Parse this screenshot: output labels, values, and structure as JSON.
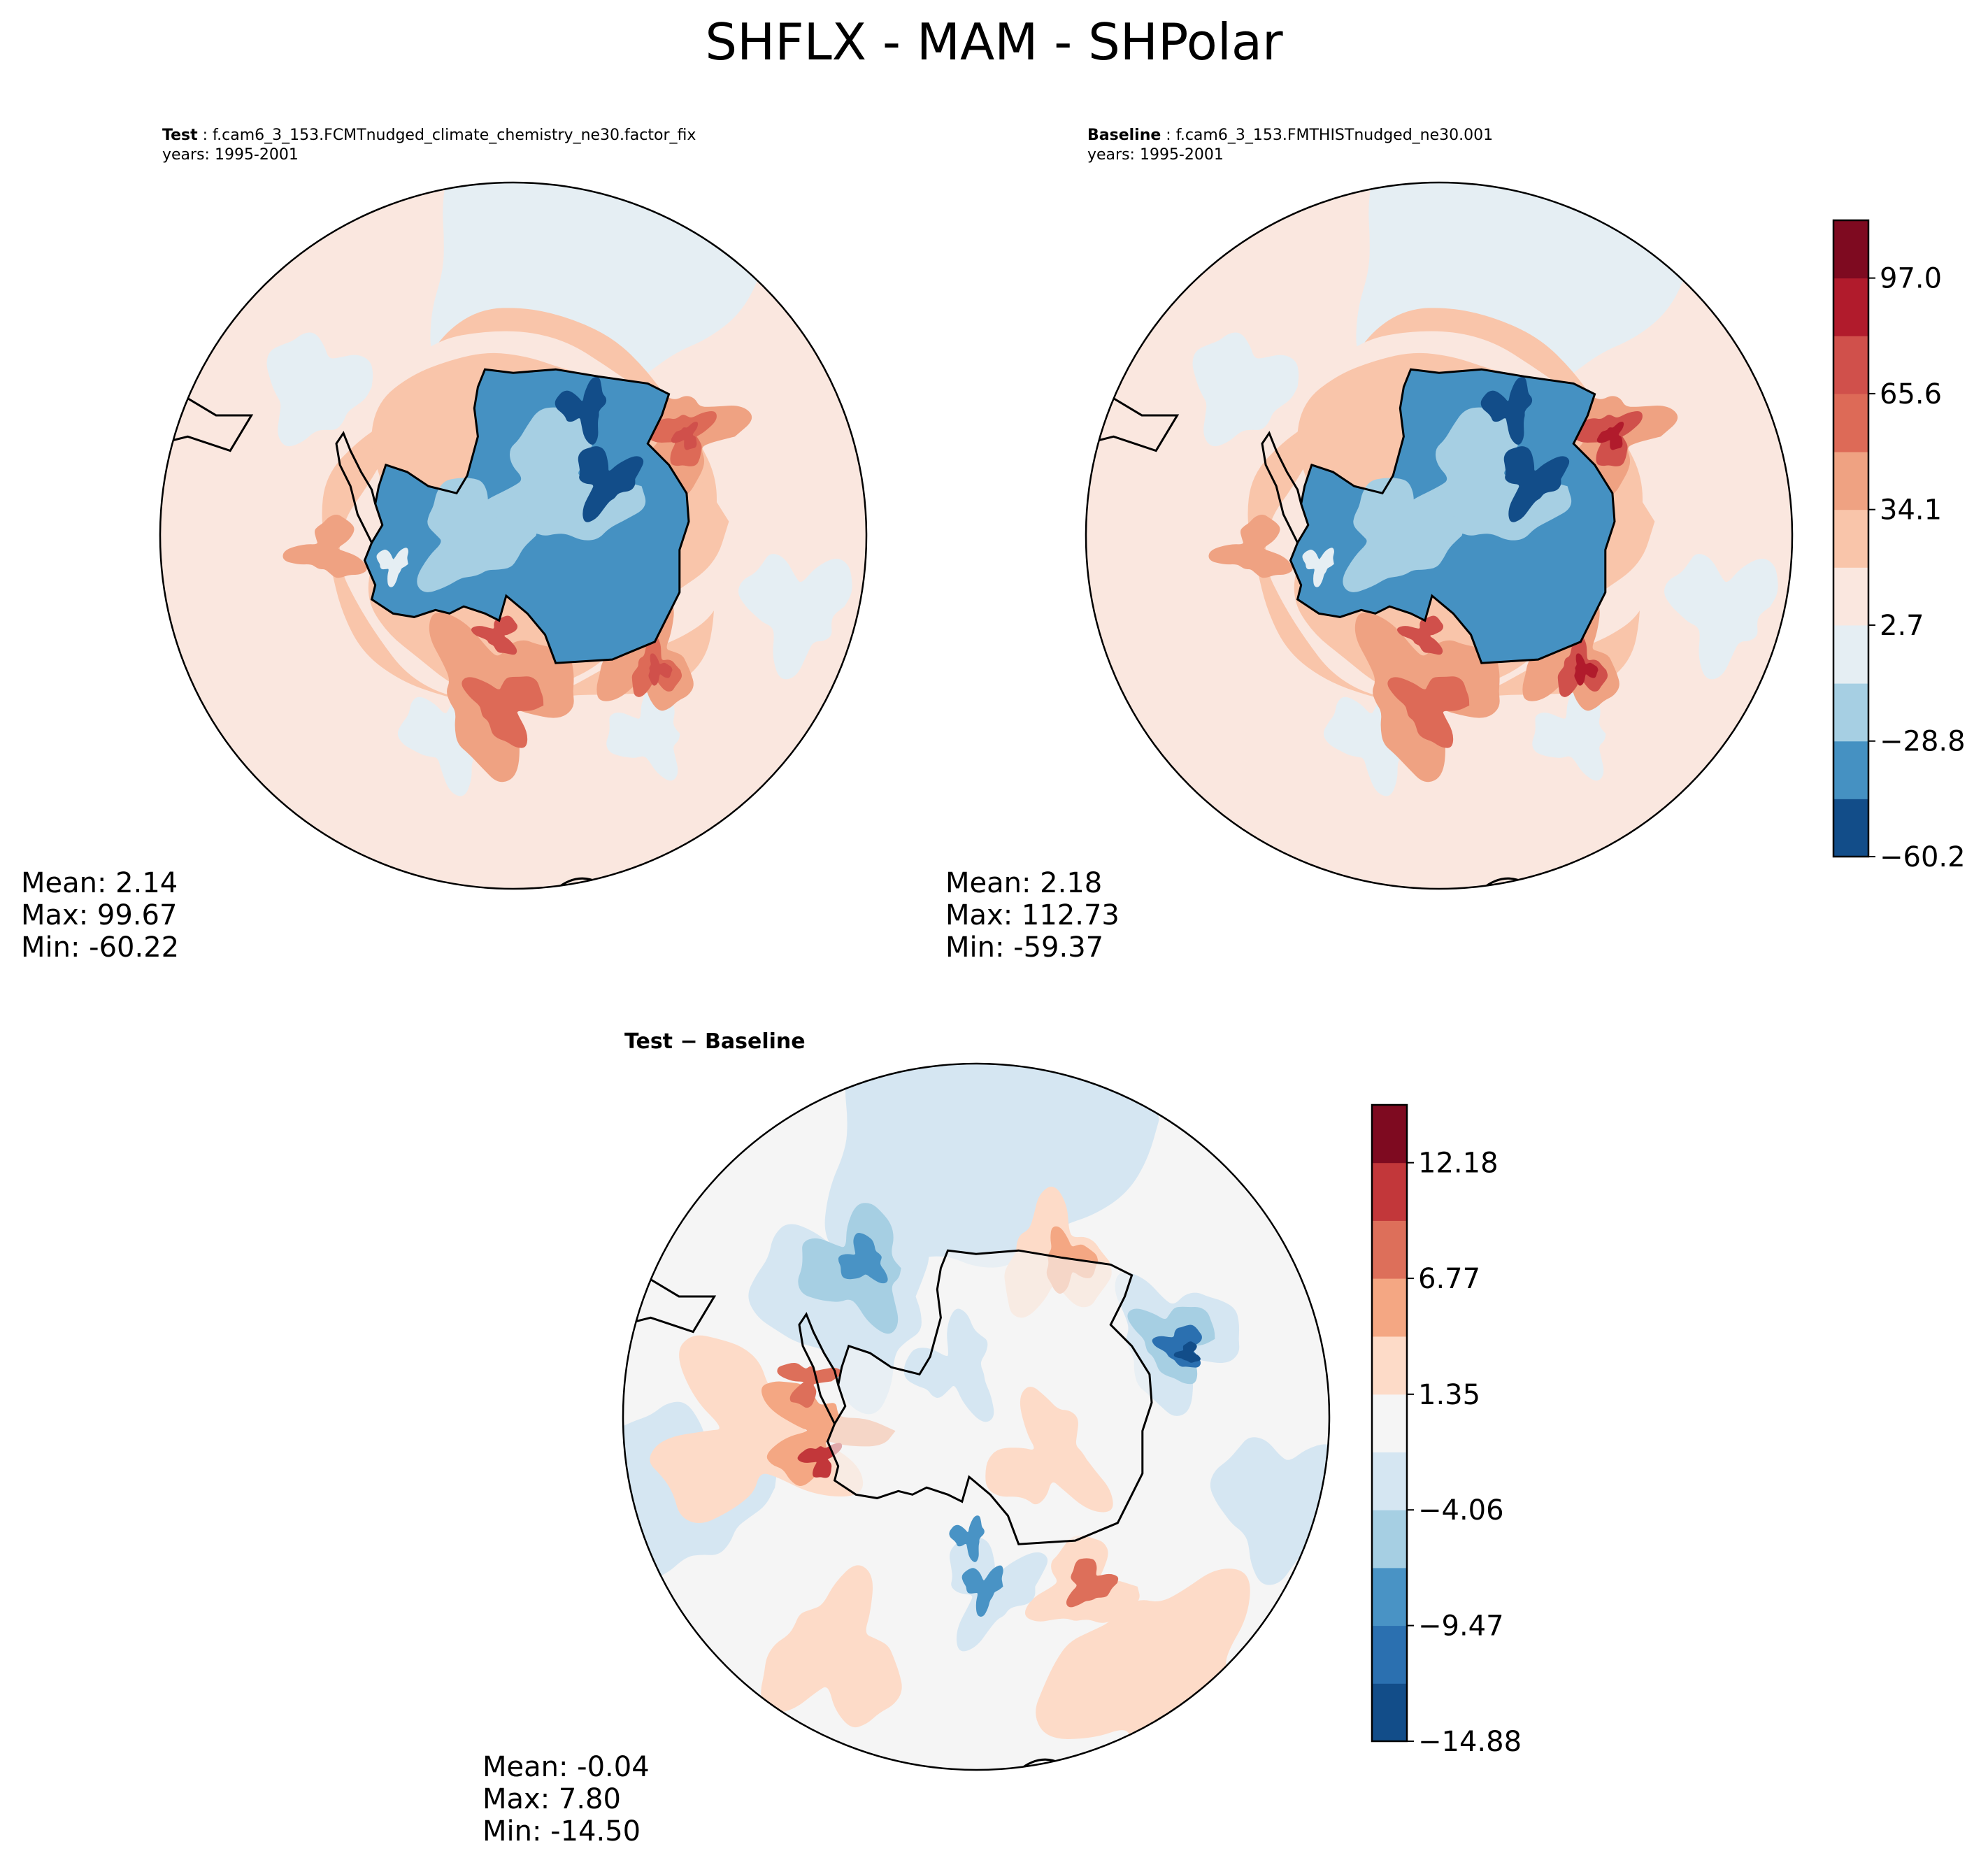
{
  "figure_title": "SHFLX - MAM - SHPolar",
  "colors": {
    "seq11": [
      "#124d89",
      "#4591c2",
      "#a6cfe3",
      "#e5eef3",
      "#fae7df",
      "#f9c5aa",
      "#efa282",
      "#dd6a57",
      "#d0504b",
      "#b11b2c",
      "#7e0a20"
    ],
    "diff10": [
      "#124d89",
      "#2b70b0",
      "#4993c5",
      "#a6cfe3",
      "#d5e6f2",
      "#f5f5f5",
      "#fddbc8",
      "#f4a783",
      "#dd6f5a",
      "#c2373a",
      "#7e0a20"
    ],
    "coast": "#000000"
  },
  "chart_data": [
    {
      "type": "heatmap",
      "name": "test",
      "title_label": "Test",
      "title_text": "f.cam6_3_153.FCMTnudged_climate_chemistry_ne30.factor_fix",
      "years": "years: 1995-2001",
      "variable": "SHFLX",
      "season": "MAM",
      "region": "SHPolar",
      "stats": {
        "mean": "Mean:  2.14",
        "max": "Max: 99.67",
        "min": "Min: -60.22"
      }
    },
    {
      "type": "heatmap",
      "name": "baseline",
      "title_label": "Baseline",
      "title_text": "f.cam6_3_153.FMTHISTnudged_ne30.001",
      "years": "years: 1995-2001",
      "variable": "SHFLX",
      "season": "MAM",
      "region": "SHPolar",
      "stats": {
        "mean": "Mean:  2.18",
        "max": "Max: 112.73",
        "min": "Min: -59.37"
      }
    },
    {
      "type": "heatmap",
      "name": "difference",
      "title": "Test − Baseline",
      "stats": {
        "mean": "Mean: -0.04",
        "max": "Max:  7.80",
        "min": "Min: -14.50"
      }
    }
  ],
  "colorbars": {
    "shared": {
      "levels": [
        -60.2,
        -44.5,
        -28.8,
        -13.1,
        2.7,
        18.4,
        34.1,
        49.8,
        65.6,
        81.3,
        97.0,
        112.7
      ],
      "tick_values": [
        -60.2,
        -28.8,
        2.7,
        34.1,
        65.6,
        97.0
      ],
      "tick_labels": [
        "−60.2",
        "−28.8",
        "2.7",
        "34.1",
        "65.6",
        "97.0"
      ]
    },
    "diff": {
      "levels": [
        -14.88,
        -12.175,
        -9.47,
        -6.765,
        -4.06,
        -1.355,
        1.35,
        4.06,
        6.77,
        9.475,
        12.18,
        14.885
      ],
      "tick_values": [
        -14.88,
        -9.47,
        -4.06,
        1.35,
        6.77,
        12.18
      ],
      "tick_labels": [
        "−14.88",
        "−9.47",
        "−4.06",
        "1.35",
        "6.77",
        "12.18"
      ]
    }
  }
}
